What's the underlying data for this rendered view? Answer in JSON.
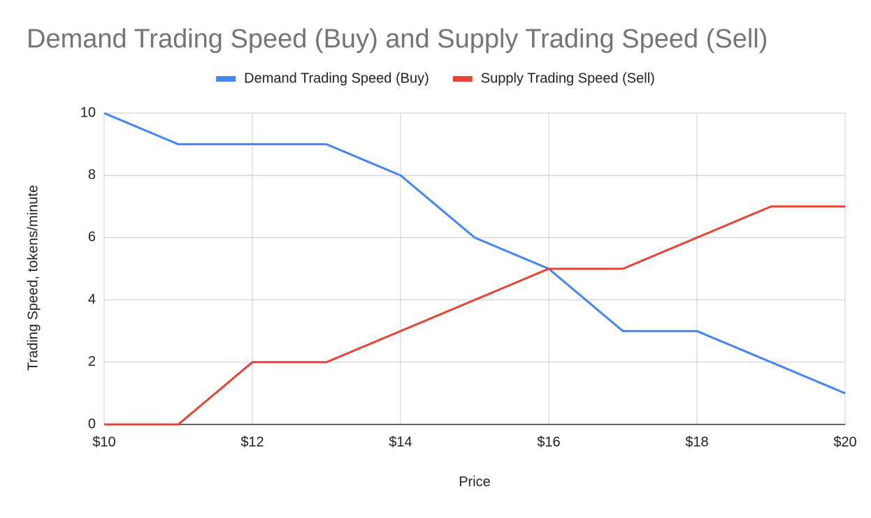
{
  "chart_data": {
    "type": "line",
    "title": "Demand Trading Speed (Buy) and Supply Trading Speed (Sell)",
    "x_label": "Price",
    "y_label": "Trading Speed, tokens/minute",
    "x": [
      10,
      11,
      12,
      13,
      14,
      15,
      16,
      17,
      18,
      19,
      20
    ],
    "series": [
      {
        "name": "Demand Trading Speed (Buy)",
        "color": "#4285f4",
        "values": [
          10,
          9,
          9,
          9,
          8,
          6,
          5,
          3,
          3,
          2,
          1
        ]
      },
      {
        "name": "Supply Trading Speed (Sell)",
        "color": "#ea4335",
        "values": [
          0,
          0,
          2,
          2,
          3,
          4,
          5,
          5,
          6,
          7,
          7
        ]
      }
    ],
    "xlim": [
      10,
      20
    ],
    "xticks": [
      {
        "value": 10,
        "label": "$10"
      },
      {
        "value": 12,
        "label": "$12"
      },
      {
        "value": 14,
        "label": "$14"
      },
      {
        "value": 16,
        "label": "$16"
      },
      {
        "value": 18,
        "label": "$18"
      },
      {
        "value": 20,
        "label": "$20"
      }
    ],
    "ylim": [
      0,
      10
    ],
    "yticks": [
      0,
      2,
      4,
      6,
      8,
      10
    ],
    "grid": true,
    "legend": "top"
  }
}
